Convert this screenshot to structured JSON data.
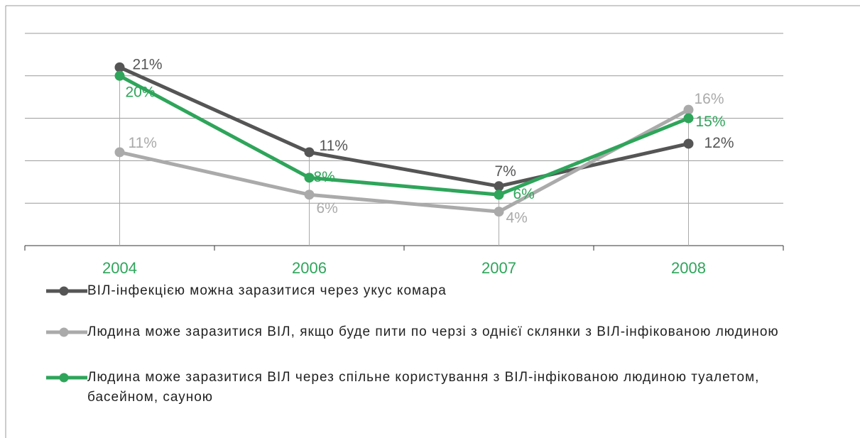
{
  "chart_data": {
    "type": "line",
    "categories": [
      "2004",
      "2006",
      "2007",
      "2008"
    ],
    "series": [
      {
        "name": "ВІЛ-інфекцією можна заразитися через укус комара",
        "color": "#555555",
        "values": [
          21,
          11,
          7,
          12
        ],
        "value_labels": [
          "21%",
          "11%",
          "7%",
          "12%"
        ]
      },
      {
        "name": "Людина може заразитися ВІЛ, якщо буде пити по черзі з однієї склянки з ВІЛ-інфікованою людиною",
        "color": "#aaaaaa",
        "values": [
          11,
          6,
          4,
          16
        ],
        "value_labels": [
          "11%",
          "6%",
          "4%",
          "16%"
        ]
      },
      {
        "name": "Людина може заразитися ВІЛ через спільне користування з ВІЛ-інфікованою людиною туалетом, басейном, сауною",
        "color": "#2ea55a",
        "values": [
          20,
          8,
          6,
          15
        ],
        "value_labels": [
          "20%",
          "8%",
          "6%",
          "15%"
        ]
      }
    ],
    "category_color": "#2ea55a",
    "ylim": [
      0,
      25
    ],
    "yticks": [
      0,
      5,
      10,
      15,
      20,
      25
    ],
    "grid": true
  }
}
